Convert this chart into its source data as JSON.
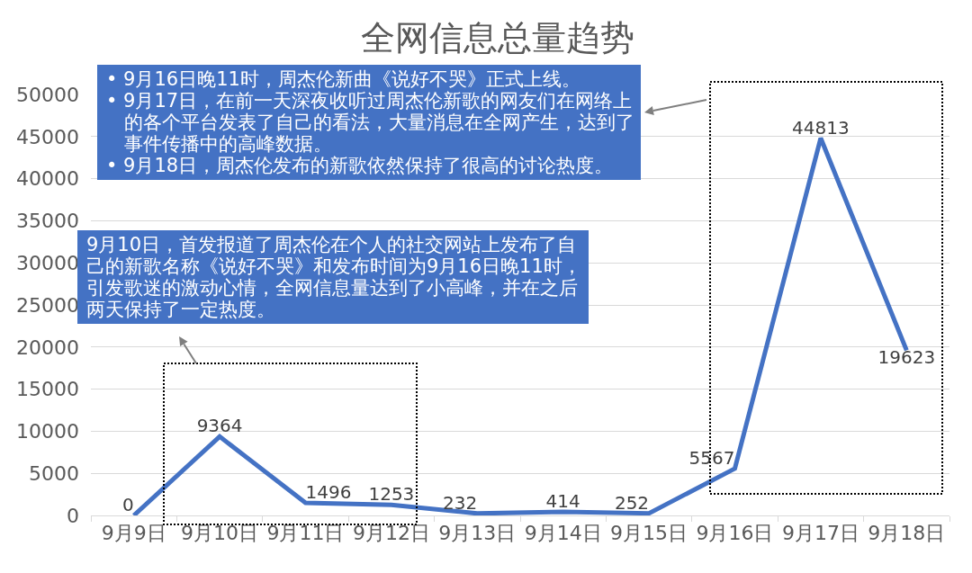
{
  "chart_data": {
    "type": "line",
    "title": "全网信息总量趋势",
    "categories": [
      "9月9日",
      "9月10日",
      "9月11日",
      "9月12日",
      "9月13日",
      "9月14日",
      "9月15日",
      "9月16日",
      "9月17日",
      "9月18日"
    ],
    "values": [
      0,
      9364,
      1496,
      1253,
      232,
      414,
      252,
      5567,
      44813,
      19623
    ],
    "color": "#4472c4",
    "ylim": [
      0,
      50000
    ],
    "yticks": [
      0,
      5000,
      10000,
      15000,
      20000,
      25000,
      30000,
      35000,
      40000,
      45000,
      50000
    ],
    "grid": "y",
    "data_labels": true,
    "line_style": "solid",
    "annotations": [
      "• 9月16日晚11时，周杰伦新曲《说好不哭》正式上线。\n• 9月17日，在前一天深夜收听过周杰伦新歌的网友们在网络上的各个平台发表了自己的看法，大量消息在全网产生，达到了事件传播中的高峰数据。\n• 9月18日，周杰伦发布的新歌依然保持了很高的讨论热度。",
      "9月10日，首发报道了周杰伦在个人的社交网站上发布了自己的新歌名称《说好不哭》和发布时间为9月16日晚11时，引发歌迷的激动心情，全网信息量达到了小高峰，并在之后两天保持了一定热度。"
    ]
  }
}
